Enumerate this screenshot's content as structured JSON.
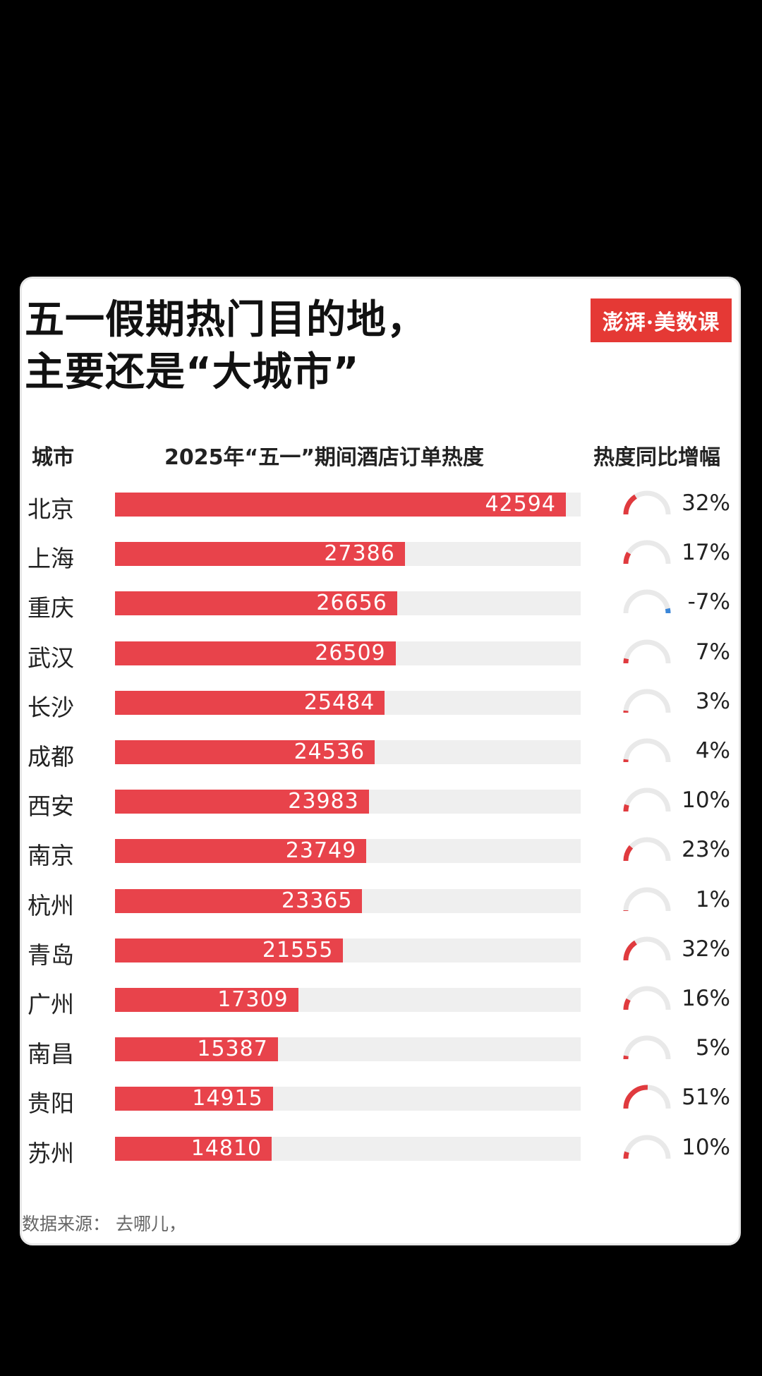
{
  "title_line1": "五一假期热门目的地，",
  "title_line2": "主要还是“大城市”",
  "logo_text": "澎湃·美数课",
  "chart_data": {
    "type": "bar",
    "title": "五一假期热门目的地，主要还是“大城市”",
    "column_headers": {
      "city": "城市",
      "value": "2025年“五一”期间酒店订单热度",
      "change": "热度同比增幅"
    },
    "categories": [
      "北京",
      "上海",
      "重庆",
      "武汉",
      "长沙",
      "成都",
      "西安",
      "南京",
      "杭州",
      "青岛",
      "广州",
      "南昌",
      "贵阳",
      "苏州"
    ],
    "values": [
      42594,
      27386,
      26656,
      26509,
      25484,
      24536,
      23983,
      23749,
      23365,
      21555,
      17309,
      15387,
      14915,
      14810
    ],
    "change_pct": [
      32,
      17,
      -7,
      7,
      3,
      4,
      10,
      23,
      1,
      32,
      16,
      5,
      51,
      10
    ],
    "change_labels": [
      "32%",
      "17%",
      "-7%",
      "7%",
      "3%",
      "4%",
      "10%",
      "23%",
      "1%",
      "32%",
      "16%",
      "5%",
      "51%",
      "10%"
    ],
    "bar_color": "#e8434b",
    "positive_color": "#e03a3e",
    "negative_color": "#3a86d8",
    "track_color": "#efefef",
    "xlim": [
      0,
      44000
    ]
  },
  "source": "数据来源：  去哪儿，"
}
